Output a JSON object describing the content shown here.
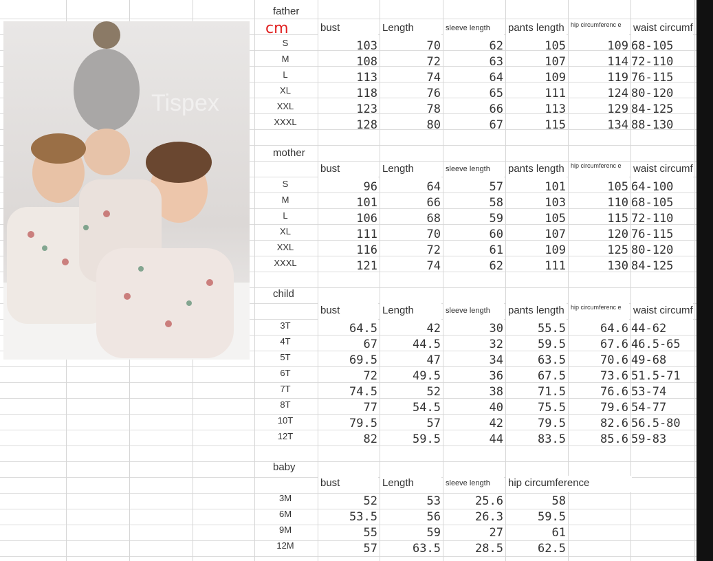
{
  "unit": "cm",
  "watermark": "Tispex",
  "sections": [
    {
      "title": "father",
      "headers": [
        "bust",
        "Length",
        "sleeve length",
        "pants length",
        "hip circumferenc e",
        "waist circumf"
      ],
      "rows": [
        [
          "S",
          "103",
          "70",
          "62",
          "105",
          "109",
          "68-105"
        ],
        [
          "M",
          "108",
          "72",
          "63",
          "107",
          "114",
          "72-110"
        ],
        [
          "L",
          "113",
          "74",
          "64",
          "109",
          "119",
          "76-115"
        ],
        [
          "XL",
          "118",
          "76",
          "65",
          "111",
          "124",
          "80-120"
        ],
        [
          "XXL",
          "123",
          "78",
          "66",
          "113",
          "129",
          "84-125"
        ],
        [
          "XXXL",
          "128",
          "80",
          "67",
          "115",
          "134",
          "88-130"
        ]
      ]
    },
    {
      "title": "mother",
      "headers": [
        "bust",
        "Length",
        "sleeve length",
        "pants length",
        "hip circumferenc e",
        "waist circumf"
      ],
      "rows": [
        [
          "S",
          "96",
          "64",
          "57",
          "101",
          "105",
          "64-100"
        ],
        [
          "M",
          "101",
          "66",
          "58",
          "103",
          "110",
          "68-105"
        ],
        [
          "L",
          "106",
          "68",
          "59",
          "105",
          "115",
          "72-110"
        ],
        [
          "XL",
          "111",
          "70",
          "60",
          "107",
          "120",
          "76-115"
        ],
        [
          "XXL",
          "116",
          "72",
          "61",
          "109",
          "125",
          "80-120"
        ],
        [
          "XXXL",
          "121",
          "74",
          "62",
          "111",
          "130",
          "84-125"
        ]
      ]
    },
    {
      "title": "child",
      "headers": [
        "bust",
        "Length",
        "sleeve length",
        "pants length",
        "hip circumferenc e",
        "waist circumf"
      ],
      "rows": [
        [
          "3T",
          "64.5",
          "42",
          "30",
          "55.5",
          "64.6",
          "44-62"
        ],
        [
          "4T",
          "67",
          "44.5",
          "32",
          "59.5",
          "67.6",
          "46.5-65"
        ],
        [
          "5T",
          "69.5",
          "47",
          "34",
          "63.5",
          "70.6",
          "49-68"
        ],
        [
          "6T",
          "72",
          "49.5",
          "36",
          "67.5",
          "73.6",
          "51.5-71"
        ],
        [
          "7T",
          "74.5",
          "52",
          "38",
          "71.5",
          "76.6",
          "53-74"
        ],
        [
          "8T",
          "77",
          "54.5",
          "40",
          "75.5",
          "79.6",
          "54-77"
        ],
        [
          "10T",
          "79.5",
          "57",
          "42",
          "79.5",
          "82.6",
          "56.5-80"
        ],
        [
          "12T",
          "82",
          "59.5",
          "44",
          "83.5",
          "85.6",
          "59-83"
        ]
      ]
    },
    {
      "title": "baby",
      "headers": [
        "bust",
        "Length",
        "sleeve length",
        "hip circumference"
      ],
      "rows": [
        [
          "3M",
          "52",
          "53",
          "25.6",
          "58"
        ],
        [
          "6M",
          "53.5",
          "56",
          "26.3",
          "59.5"
        ],
        [
          "9M",
          "55",
          "59",
          "27",
          "61"
        ],
        [
          "12M",
          "57",
          "63.5",
          "28.5",
          "62.5"
        ]
      ]
    }
  ]
}
